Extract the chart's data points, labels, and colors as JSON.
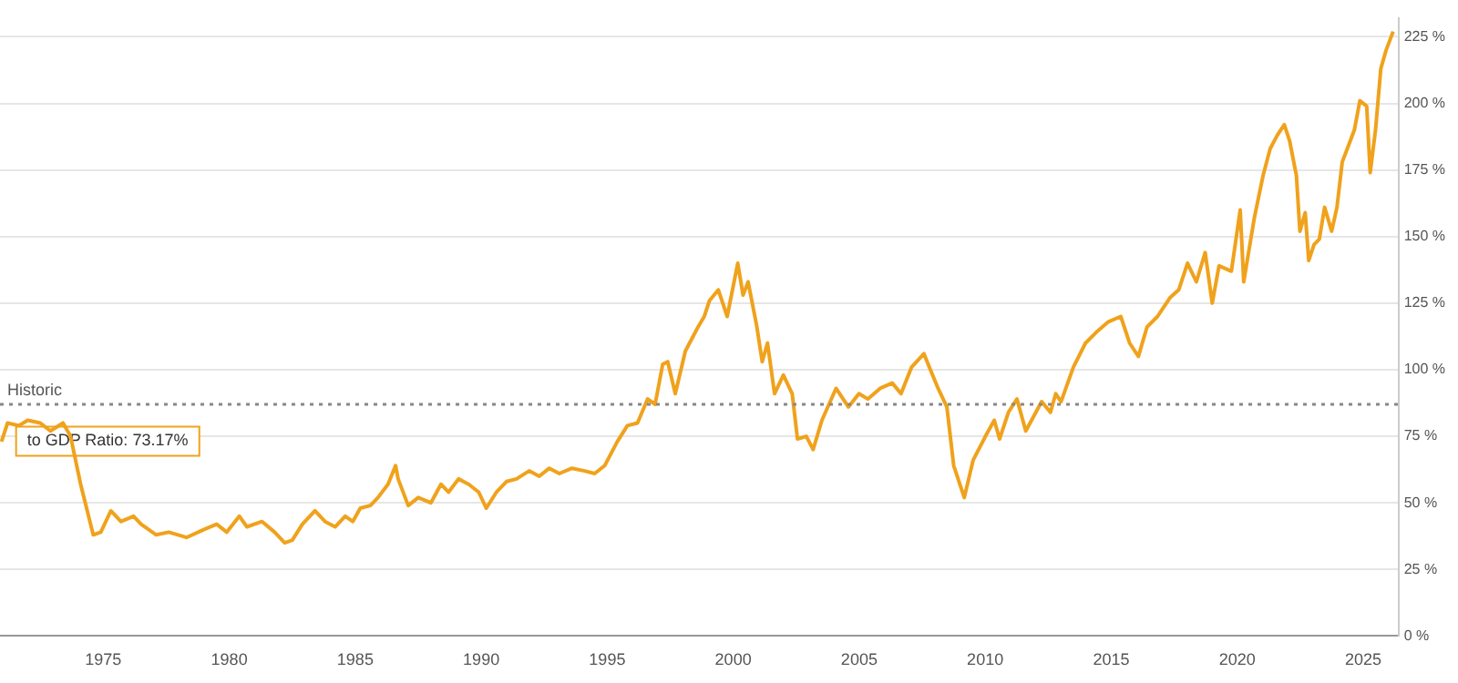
{
  "chart_data": {
    "type": "line",
    "x": [
      1970.96,
      1971.2,
      1971.65,
      1972.0,
      1972.5,
      1972.9,
      1973.4,
      1973.7,
      1974.1,
      1974.6,
      1974.9,
      1975.3,
      1975.7,
      1976.2,
      1976.5,
      1977.1,
      1977.6,
      1978.3,
      1979.0,
      1979.5,
      1979.9,
      1980.4,
      1980.7,
      1981.3,
      1981.8,
      1982.2,
      1982.5,
      1982.9,
      1983.4,
      1983.8,
      1984.2,
      1984.6,
      1984.9,
      1985.2,
      1985.6,
      1985.9,
      1986.3,
      1986.6,
      1986.7,
      1987.1,
      1987.5,
      1988.0,
      1988.4,
      1988.7,
      1989.1,
      1989.5,
      1989.9,
      1990.2,
      1990.6,
      1991.0,
      1991.4,
      1991.9,
      1992.3,
      1992.7,
      1993.1,
      1993.6,
      1994.1,
      1994.5,
      1994.9,
      1995.4,
      1995.8,
      1996.2,
      1996.6,
      1996.9,
      1997.2,
      1997.4,
      1997.7,
      1998.1,
      1998.6,
      1998.85,
      1999.06,
      1999.41,
      1999.76,
      2000.18,
      2000.39,
      2000.59,
      2000.94,
      2001.15,
      2001.36,
      2001.64,
      2001.99,
      2002.34,
      2002.55,
      2002.9,
      2003.17,
      2003.52,
      2004.08,
      2004.57,
      2004.99,
      2005.34,
      2005.83,
      2006.31,
      2006.66,
      2007.08,
      2007.57,
      2007.78,
      2008.13,
      2008.48,
      2008.75,
      2009.17,
      2009.52,
      2010.01,
      2010.36,
      2010.57,
      2010.92,
      2011.26,
      2011.61,
      2012.24,
      2012.59,
      2012.8,
      2013.01,
      2013.5,
      2013.98,
      2014.4,
      2014.89,
      2015.38,
      2015.73,
      2016.08,
      2016.42,
      2016.84,
      2017.33,
      2017.68,
      2018.03,
      2018.38,
      2018.73,
      2019.01,
      2019.28,
      2019.77,
      2020.12,
      2020.26,
      2020.68,
      2021.03,
      2021.31,
      2021.59,
      2021.87,
      2022.08,
      2022.35,
      2022.49,
      2022.7,
      2022.84,
      2023.05,
      2023.26,
      2023.47,
      2023.75,
      2023.96,
      2024.17,
      2024.45,
      2024.65,
      2024.87,
      2025.14,
      2025.28,
      2025.49,
      2025.7,
      2025.91,
      2026.19
    ],
    "series": [
      {
        "color": "#f0a21c",
        "values": [
          73,
          80,
          79,
          81,
          80,
          77,
          80,
          75,
          57,
          38,
          39,
          47,
          43,
          45,
          42,
          38,
          39,
          37,
          40,
          42,
          39,
          45,
          41,
          43,
          39,
          35,
          36,
          42,
          47,
          43,
          41,
          45,
          43,
          48,
          49,
          52,
          57,
          64,
          59,
          49,
          52,
          50,
          57,
          54,
          59,
          57,
          54,
          48,
          54,
          58,
          59,
          62,
          60,
          63,
          61,
          63,
          62,
          61,
          64,
          73,
          79,
          80,
          89,
          87,
          102,
          103,
          91,
          107,
          116,
          120,
          126,
          130,
          120,
          140,
          128,
          133,
          116,
          103,
          110,
          91,
          98,
          91,
          74,
          75,
          70,
          81,
          93,
          86,
          91,
          89,
          93,
          95,
          91,
          101,
          106,
          101,
          93,
          86,
          64,
          52,
          66,
          75,
          81,
          74,
          84,
          89,
          77,
          88,
          84,
          91,
          88,
          101,
          110,
          114,
          118,
          120,
          110,
          105,
          116,
          120,
          127,
          130,
          140,
          133,
          144,
          125,
          139,
          137,
          160,
          133,
          157,
          173,
          183,
          188,
          192,
          186,
          173,
          152,
          159,
          141,
          147,
          149,
          161,
          152,
          161,
          178,
          185,
          190,
          201,
          199,
          174,
          190,
          213,
          220,
          227
        ]
      }
    ],
    "xlim": [
      1970.9,
      2026.4
    ],
    "xticks": [
      1975,
      1980,
      1985,
      1990,
      1995,
      2000,
      2005,
      2010,
      2015,
      2020,
      2025
    ],
    "ylim": [
      0,
      232
    ],
    "yticks": [
      {
        "value": 0,
        "label": "0 %"
      },
      {
        "value": 25,
        "label": "25 %"
      },
      {
        "value": 50,
        "label": "50 %"
      },
      {
        "value": 75,
        "label": "75 %"
      },
      {
        "value": 100,
        "label": "100 %"
      },
      {
        "value": 125,
        "label": "125 %"
      },
      {
        "value": 150,
        "label": "150 %"
      },
      {
        "value": 175,
        "label": "175 %"
      },
      {
        "value": 200,
        "label": "200 %"
      },
      {
        "value": 225,
        "label": "225 %"
      }
    ],
    "grid": "y",
    "legend": false,
    "marker": "none",
    "line_style": "solid",
    "ref_lines": [
      {
        "axis": "y",
        "value": 87,
        "label": "Historic",
        "color": "#888888",
        "line_style": "dotted"
      }
    ],
    "annotations": [
      {
        "text": "to GDP Ratio: 73.17%",
        "x": 1970.96,
        "y": 73.17
      }
    ]
  }
}
